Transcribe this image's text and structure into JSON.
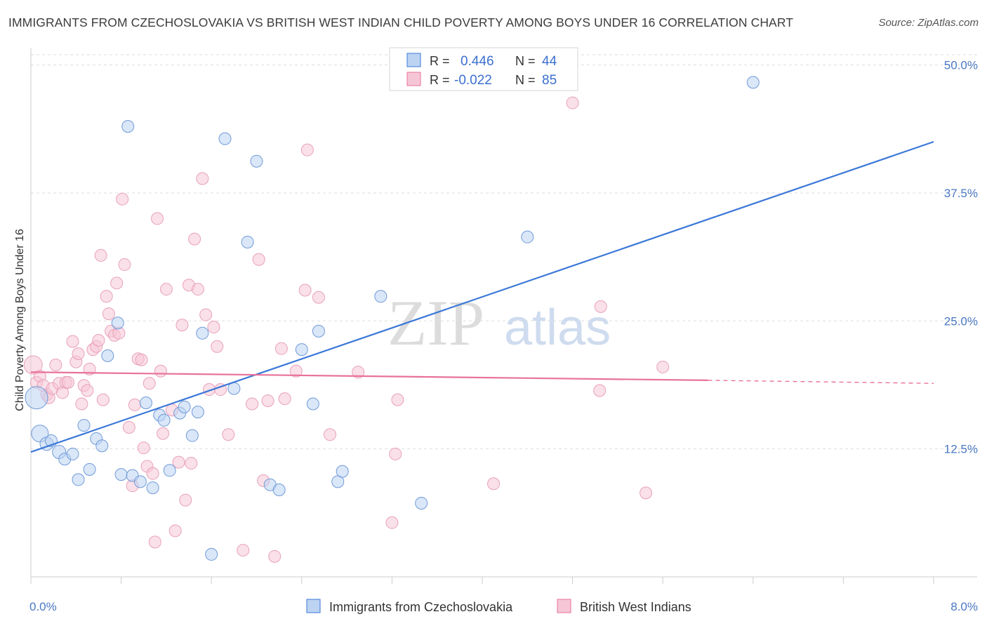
{
  "title": "IMMIGRANTS FROM CZECHOSLOVAKIA VS BRITISH WEST INDIAN CHILD POVERTY AMONG BOYS UNDER 16 CORRELATION CHART",
  "source": "Source: ZipAtlas.com",
  "watermark": {
    "zip": "ZIP",
    "atlas": "atlas"
  },
  "colors": {
    "blue": "#3b78d8",
    "blue_fill": "#bcd3f2",
    "pink": "#e8729a",
    "pink_fill": "#f6c6d6",
    "grid": "#d9d9d9"
  },
  "legend": {
    "rows": [
      {
        "r_label": "R =",
        "r_value": "0.446",
        "n_label": "N =",
        "n_value": "44"
      },
      {
        "r_label": "R =",
        "r_value": "-0.022",
        "n_label": "N =",
        "n_value": "85"
      }
    ]
  },
  "chart_data": {
    "type": "scatter",
    "title": "IMMIGRANTS FROM CZECHOSLOVAKIA VS BRITISH WEST INDIAN CHILD POVERTY AMONG BOYS UNDER 16 CORRELATION CHART",
    "xlabel": "",
    "ylabel": "Child Poverty Among Boys Under 16",
    "xlim": [
      0,
      8
    ],
    "ylim": [
      0,
      52
    ],
    "x_tick_labels": [
      "0.0%",
      "8.0%"
    ],
    "y_ticks": [
      12.5,
      25,
      37.5,
      50
    ],
    "y_tick_labels": [
      "12.5%",
      "25.0%",
      "37.5%",
      "50.0%"
    ],
    "grid": true,
    "legend_placement": "top-center",
    "series": [
      {
        "name": "Immigrants from Czechoslovakia",
        "color": "#3b78d8",
        "trend": {
          "x0": 0,
          "y0": 12.2,
          "x1": 8,
          "y1": 42.5
        },
        "points": [
          [
            0.05,
            17.5
          ],
          [
            0.08,
            14.0
          ],
          [
            0.14,
            13.0
          ],
          [
            0.18,
            13.3
          ],
          [
            0.25,
            12.2
          ],
          [
            0.3,
            11.5
          ],
          [
            0.37,
            12.0
          ],
          [
            0.42,
            9.5
          ],
          [
            0.47,
            14.8
          ],
          [
            0.52,
            10.5
          ],
          [
            0.58,
            13.5
          ],
          [
            0.63,
            12.8
          ],
          [
            0.68,
            21.6
          ],
          [
            0.77,
            24.8
          ],
          [
            0.8,
            10.0
          ],
          [
            0.86,
            44.0
          ],
          [
            0.9,
            9.9
          ],
          [
            0.97,
            9.3
          ],
          [
            1.02,
            17.0
          ],
          [
            1.08,
            8.7
          ],
          [
            1.14,
            15.8
          ],
          [
            1.18,
            15.3
          ],
          [
            1.23,
            10.4
          ],
          [
            1.32,
            16.0
          ],
          [
            1.36,
            16.6
          ],
          [
            1.43,
            13.8
          ],
          [
            1.48,
            16.1
          ],
          [
            1.52,
            23.8
          ],
          [
            1.6,
            2.2
          ],
          [
            1.72,
            42.8
          ],
          [
            1.8,
            18.4
          ],
          [
            1.92,
            32.7
          ],
          [
            2.0,
            40.6
          ],
          [
            2.12,
            9.0
          ],
          [
            2.2,
            8.5
          ],
          [
            2.4,
            22.2
          ],
          [
            2.5,
            16.9
          ],
          [
            2.55,
            24.0
          ],
          [
            2.72,
            9.3
          ],
          [
            2.76,
            10.3
          ],
          [
            3.1,
            27.4
          ],
          [
            3.46,
            7.2
          ],
          [
            4.4,
            33.2
          ],
          [
            6.4,
            48.3
          ]
        ]
      },
      {
        "name": "British West Indians",
        "color": "#e8729a",
        "trend": {
          "x0": 0,
          "y0": 20.0,
          "x1": 6.0,
          "y1": 19.2,
          "dash_to_x": 8,
          "dash_to_y": 18.9
        },
        "points": [
          [
            0.02,
            20.7
          ],
          [
            0.05,
            19.0
          ],
          [
            0.08,
            19.6
          ],
          [
            0.11,
            18.7
          ],
          [
            0.14,
            17.8
          ],
          [
            0.16,
            17.5
          ],
          [
            0.19,
            18.4
          ],
          [
            0.22,
            20.7
          ],
          [
            0.25,
            18.9
          ],
          [
            0.28,
            18.0
          ],
          [
            0.31,
            19.0
          ],
          [
            0.33,
            19.0
          ],
          [
            0.37,
            23.0
          ],
          [
            0.4,
            21.0
          ],
          [
            0.42,
            21.8
          ],
          [
            0.45,
            16.9
          ],
          [
            0.47,
            18.7
          ],
          [
            0.5,
            18.2
          ],
          [
            0.52,
            20.3
          ],
          [
            0.55,
            22.2
          ],
          [
            0.58,
            22.5
          ],
          [
            0.6,
            23.1
          ],
          [
            0.62,
            31.4
          ],
          [
            0.64,
            17.3
          ],
          [
            0.67,
            27.4
          ],
          [
            0.69,
            25.7
          ],
          [
            0.71,
            24.0
          ],
          [
            0.74,
            23.6
          ],
          [
            0.76,
            28.7
          ],
          [
            0.78,
            23.8
          ],
          [
            0.81,
            36.9
          ],
          [
            0.83,
            30.5
          ],
          [
            0.87,
            14.6
          ],
          [
            0.9,
            8.9
          ],
          [
            0.92,
            16.8
          ],
          [
            0.95,
            21.3
          ],
          [
            0.98,
            21.2
          ],
          [
            1.0,
            12.6
          ],
          [
            1.03,
            10.8
          ],
          [
            1.05,
            18.9
          ],
          [
            1.08,
            10.1
          ],
          [
            1.1,
            3.4
          ],
          [
            1.12,
            35.0
          ],
          [
            1.15,
            20.1
          ],
          [
            1.17,
            14.0
          ],
          [
            1.2,
            28.1
          ],
          [
            1.25,
            16.3
          ],
          [
            1.28,
            4.5
          ],
          [
            1.31,
            11.2
          ],
          [
            1.34,
            24.6
          ],
          [
            1.37,
            7.5
          ],
          [
            1.4,
            28.5
          ],
          [
            1.42,
            11.1
          ],
          [
            1.45,
            33.0
          ],
          [
            1.48,
            28.1
          ],
          [
            1.52,
            38.9
          ],
          [
            1.55,
            25.6
          ],
          [
            1.58,
            18.3
          ],
          [
            1.62,
            24.4
          ],
          [
            1.65,
            22.5
          ],
          [
            1.68,
            18.3
          ],
          [
            1.75,
            13.9
          ],
          [
            1.88,
            2.6
          ],
          [
            1.96,
            16.9
          ],
          [
            2.02,
            31.0
          ],
          [
            2.06,
            9.4
          ],
          [
            2.1,
            17.2
          ],
          [
            2.16,
            2.0
          ],
          [
            2.22,
            22.3
          ],
          [
            2.25,
            17.4
          ],
          [
            2.35,
            20.1
          ],
          [
            2.43,
            28.0
          ],
          [
            2.45,
            41.7
          ],
          [
            2.55,
            27.3
          ],
          [
            2.65,
            13.9
          ],
          [
            2.9,
            20.0
          ],
          [
            3.2,
            5.3
          ],
          [
            3.23,
            12.0
          ],
          [
            3.25,
            17.3
          ],
          [
            4.1,
            9.1
          ],
          [
            4.8,
            46.3
          ],
          [
            5.05,
            26.4
          ],
          [
            5.04,
            18.2
          ],
          [
            5.45,
            8.2
          ],
          [
            5.6,
            20.5
          ]
        ]
      }
    ]
  },
  "bottom_legend": [
    {
      "label": "Immigrants from Czechoslovakia"
    },
    {
      "label": "British West Indians"
    }
  ]
}
